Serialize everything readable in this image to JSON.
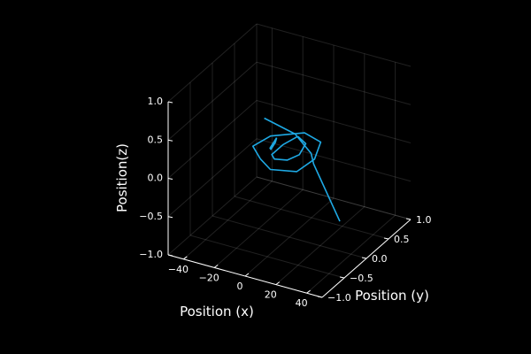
{
  "chart_data": {
    "type": "line",
    "projection": "3d-isometric",
    "grid": true,
    "legend": "none",
    "xlabel": "Position (x)",
    "ylabel": "Position (y)",
    "zlabel": "Position(z)",
    "xlim": [
      -50,
      50
    ],
    "ylim": [
      -1.0,
      1.0
    ],
    "zlim": [
      -1.0,
      1.0
    ],
    "x_ticks": [
      -40,
      -20,
      0,
      20,
      40
    ],
    "x_tick_labels": [
      "−40",
      "−20",
      "0",
      "20",
      "40"
    ],
    "y_ticks": [
      -1.0,
      -0.5,
      0.0,
      0.5,
      1.0
    ],
    "y_tick_labels": [
      "−1.0",
      "−0.5",
      "0.0",
      "0.5",
      "1.0"
    ],
    "z_ticks": [
      -1.0,
      -0.5,
      0.0,
      0.5,
      1.0
    ],
    "z_tick_labels": [
      "−1.0",
      "−0.5",
      "0.0",
      "0.5",
      "1.0"
    ],
    "series": [
      {
        "color": "#1ea9e4",
        "points": [
          [
            -35,
            0.65,
            0.03
          ],
          [
            -12,
            0.55,
            0.0
          ],
          [
            -4,
            0.45,
            -0.03
          ],
          [
            4,
            0.35,
            -0.06
          ],
          [
            10,
            0.2,
            -0.09
          ],
          [
            20,
            0.0,
            -0.12
          ],
          [
            30,
            -0.2,
            -0.15
          ],
          [
            40,
            -0.4,
            -0.18
          ],
          [
            50,
            -0.6,
            -0.21
          ]
        ]
      },
      {
        "color": "#1ea9e4",
        "points": [
          [
            -6,
            -0.45,
            0.22
          ],
          [
            -18,
            -0.2,
            0.19
          ],
          [
            -18,
            0.2,
            0.12
          ],
          [
            -6,
            0.55,
            0.05
          ],
          [
            6,
            0.5,
            0.02
          ],
          [
            12,
            0.15,
            0.01
          ],
          [
            12,
            -0.25,
            0.05
          ],
          [
            2,
            -0.5,
            0.15
          ],
          [
            -6,
            -0.45,
            0.22
          ]
        ]
      },
      {
        "color": "#1ea9e4",
        "points": [
          [
            -6,
            0.4,
            0.08
          ],
          [
            -10,
            0.2,
            0.05
          ],
          [
            -10,
            -0.05,
            0.05
          ],
          [
            -4,
            -0.2,
            0.1
          ],
          [
            3,
            -0.15,
            0.1
          ],
          [
            5,
            0.05,
            0.08
          ],
          [
            2,
            0.3,
            0.08
          ],
          [
            -6,
            0.4,
            0.08
          ]
        ]
      },
      {
        "color": "#1ea9e4",
        "points": [
          [
            -14,
            0.2,
            0.12
          ],
          [
            -12,
            0.1,
            0.12
          ],
          [
            -12,
            0.0,
            0.08
          ],
          [
            -14,
            0.05,
            0.06
          ],
          [
            -14,
            0.2,
            0.12
          ]
        ]
      }
    ]
  }
}
